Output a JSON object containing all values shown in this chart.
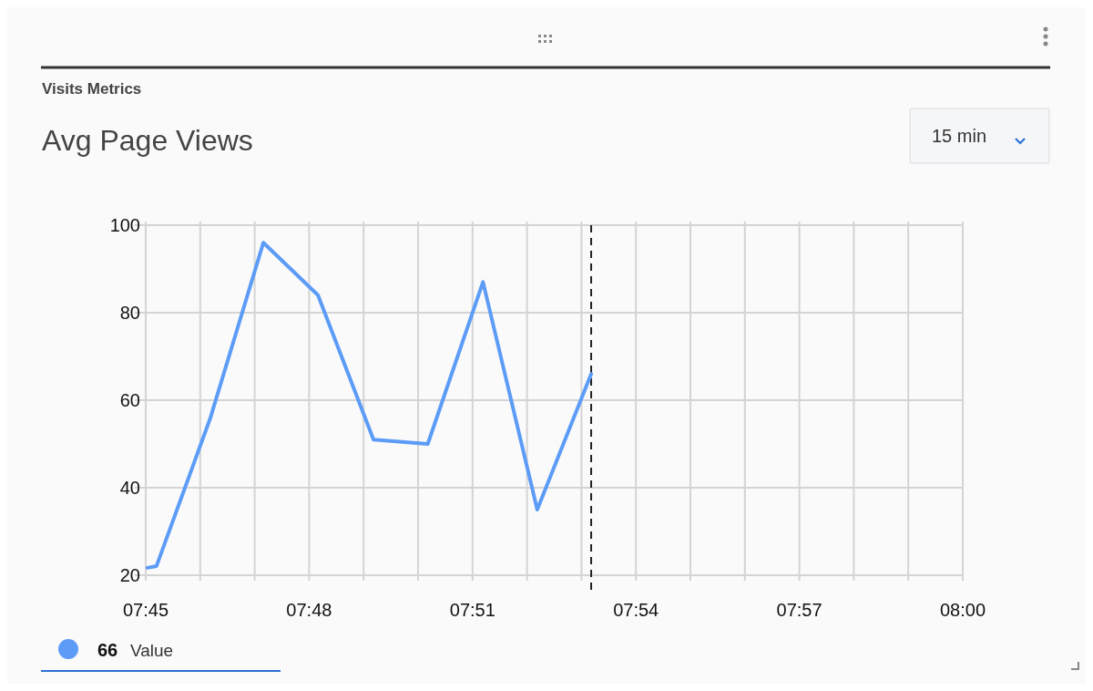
{
  "chart_data": {
    "type": "line",
    "subtitle": "Visits Metrics",
    "title": "Avg Page Views",
    "x": [
      7.7505,
      7.7533,
      7.7698,
      7.786,
      7.8027,
      7.8197,
      7.8363,
      7.8532,
      7.8698,
      7.8863
    ],
    "series": [
      {
        "name": "Value",
        "color": "#5c9cf7",
        "values": [
          21.7,
          22.1,
          56,
          96,
          84,
          51,
          50,
          87,
          35,
          66
        ]
      }
    ],
    "xlim": [
      7.75,
      8.0
    ],
    "xticks": [
      {
        "value": 7.75,
        "label": "07:45"
      },
      {
        "value": 7.766667,
        "label": null
      },
      {
        "value": 7.783333,
        "label": null
      },
      {
        "value": 7.8,
        "label": "07:48"
      },
      {
        "value": 7.816667,
        "label": null
      },
      {
        "value": 7.833333,
        "label": null
      },
      {
        "value": 7.85,
        "label": "07:51"
      },
      {
        "value": 7.866667,
        "label": null
      },
      {
        "value": 7.883333,
        "label": null
      },
      {
        "value": 7.9,
        "label": "07:54"
      },
      {
        "value": 7.916667,
        "label": null
      },
      {
        "value": 7.933333,
        "label": null
      },
      {
        "value": 7.95,
        "label": "07:57"
      },
      {
        "value": 7.966667,
        "label": null
      },
      {
        "value": 7.983333,
        "label": null
      },
      {
        "value": 8.0,
        "label": "08:00"
      }
    ],
    "ylim": [
      20,
      100
    ],
    "yticks": [
      20,
      40,
      60,
      80,
      100
    ],
    "grid": true,
    "legend": "bottom left",
    "marker": "none",
    "line_style": "solid",
    "ref_lines": [
      {
        "axis": "x",
        "value": 7.8863,
        "line_style": "dashed",
        "color": "#222222"
      }
    ],
    "annotations": [
      "66",
      "15 min"
    ]
  }
}
